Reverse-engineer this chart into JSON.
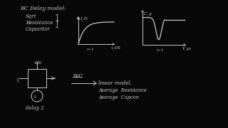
{
  "bg_color": "#080808",
  "chalk_color": "#c8c8c8",
  "title": "RC Delay model:",
  "sub1": "Sqrt",
  "sub2": "Resistance",
  "sub3": "Capacitor",
  "ids": "I_D",
  "vds": "v_DS",
  "cg": "C_g",
  "vgs": "V_gs",
  "vt": "v~t",
  "rc": "R/C",
  "arrow_text": "linear model.",
  "line1": "Average  Resistance",
  "line2": "Average  Capcon",
  "delay": "delay 2"
}
